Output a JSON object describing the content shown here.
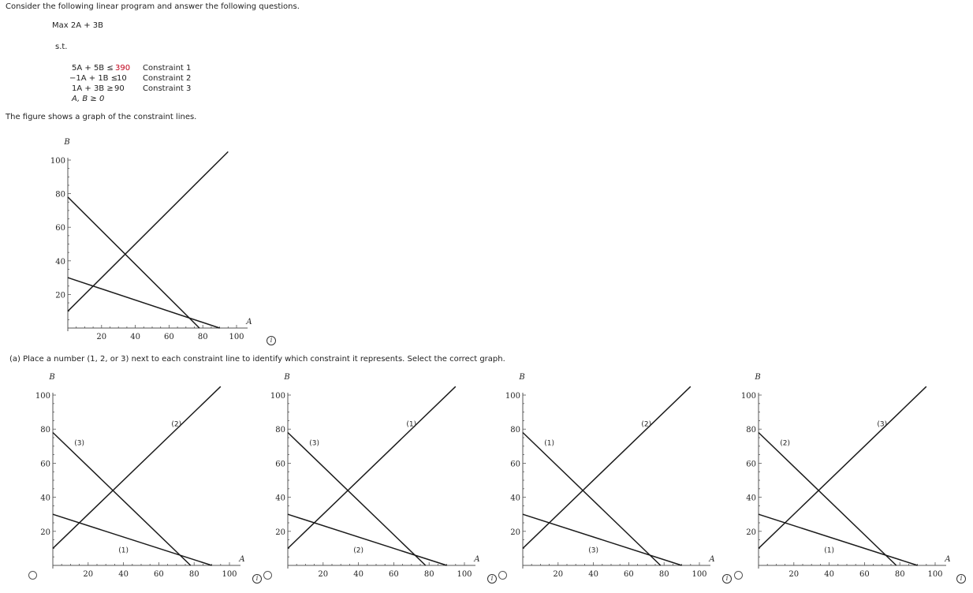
{
  "intro": "Consider the following linear program and answer the following questions.",
  "objective": "Max 2A + 3B",
  "st": "s.t.",
  "constraints": [
    {
      "lhs": "5A + 5B ≤",
      "rhs": "390",
      "name": "Constraint 1"
    },
    {
      "lhs": "−1A + 1B ≤",
      "rhs": "10",
      "name": "Constraint 2"
    },
    {
      "lhs": "1A + 3B ≥",
      "rhs": "90",
      "name": "Constraint 3"
    }
  ],
  "nonneg": "A, B ≥ 0",
  "figure_caption": "The figure shows a graph of the constraint lines.",
  "question_a": "(a)  Place a number (1, 2, or 3) next to each constraint line to identify which constraint it represents. Select the correct graph.",
  "info_symbol": "i",
  "chart_data": [
    {
      "type": "line",
      "xlabel": "A",
      "ylabel": "B",
      "xlim": [
        0,
        100
      ],
      "ylim": [
        0,
        100
      ],
      "xticks": [
        20,
        40,
        60,
        80,
        100
      ],
      "yticks": [
        20,
        40,
        60,
        80,
        100
      ],
      "series": [
        {
          "x": [
            0,
            78
          ],
          "y": [
            78,
            0
          ]
        },
        {
          "x": [
            0,
            95
          ],
          "y": [
            10,
            105
          ]
        },
        {
          "x": [
            0,
            90
          ],
          "y": [
            30,
            0
          ]
        }
      ],
      "labels": []
    },
    {
      "type": "line",
      "xlabel": "A",
      "ylabel": "B",
      "xlim": [
        0,
        100
      ],
      "ylim": [
        0,
        100
      ],
      "xticks": [
        20,
        40,
        60,
        80,
        100
      ],
      "yticks": [
        20,
        40,
        60,
        80,
        100
      ],
      "series": [
        {
          "x": [
            0,
            78
          ],
          "y": [
            78,
            0
          ]
        },
        {
          "x": [
            0,
            95
          ],
          "y": [
            10,
            105
          ]
        },
        {
          "x": [
            0,
            90
          ],
          "y": [
            30,
            0
          ]
        }
      ],
      "labels": [
        {
          "text": "(3)",
          "x": 15,
          "y": 72
        },
        {
          "text": "(2)",
          "x": 70,
          "y": 83
        },
        {
          "text": "(1)",
          "x": 40,
          "y": 9
        }
      ]
    },
    {
      "type": "line",
      "xlabel": "A",
      "ylabel": "B",
      "xlim": [
        0,
        100
      ],
      "ylim": [
        0,
        100
      ],
      "xticks": [
        20,
        40,
        60,
        80,
        100
      ],
      "yticks": [
        20,
        40,
        60,
        80,
        100
      ],
      "series": [
        {
          "x": [
            0,
            78
          ],
          "y": [
            78,
            0
          ]
        },
        {
          "x": [
            0,
            95
          ],
          "y": [
            10,
            105
          ]
        },
        {
          "x": [
            0,
            90
          ],
          "y": [
            30,
            0
          ]
        }
      ],
      "labels": [
        {
          "text": "(3)",
          "x": 15,
          "y": 72
        },
        {
          "text": "(1)",
          "x": 70,
          "y": 83
        },
        {
          "text": "(2)",
          "x": 40,
          "y": 9
        }
      ]
    },
    {
      "type": "line",
      "xlabel": "A",
      "ylabel": "B",
      "xlim": [
        0,
        100
      ],
      "ylim": [
        0,
        100
      ],
      "xticks": [
        20,
        40,
        60,
        80,
        100
      ],
      "yticks": [
        20,
        40,
        60,
        80,
        100
      ],
      "series": [
        {
          "x": [
            0,
            78
          ],
          "y": [
            78,
            0
          ]
        },
        {
          "x": [
            0,
            95
          ],
          "y": [
            10,
            105
          ]
        },
        {
          "x": [
            0,
            90
          ],
          "y": [
            30,
            0
          ]
        }
      ],
      "labels": [
        {
          "text": "(1)",
          "x": 15,
          "y": 72
        },
        {
          "text": "(2)",
          "x": 70,
          "y": 83
        },
        {
          "text": "(3)",
          "x": 40,
          "y": 9
        }
      ]
    },
    {
      "type": "line",
      "xlabel": "A",
      "ylabel": "B",
      "xlim": [
        0,
        100
      ],
      "ylim": [
        0,
        100
      ],
      "xticks": [
        20,
        40,
        60,
        80,
        100
      ],
      "yticks": [
        20,
        40,
        60,
        80,
        100
      ],
      "series": [
        {
          "x": [
            0,
            78
          ],
          "y": [
            78,
            0
          ]
        },
        {
          "x": [
            0,
            95
          ],
          "y": [
            10,
            105
          ]
        },
        {
          "x": [
            0,
            90
          ],
          "y": [
            30,
            0
          ]
        }
      ],
      "labels": [
        {
          "text": "(2)",
          "x": 15,
          "y": 72
        },
        {
          "text": "(3)",
          "x": 70,
          "y": 83
        },
        {
          "text": "(1)",
          "x": 40,
          "y": 9
        }
      ]
    }
  ]
}
